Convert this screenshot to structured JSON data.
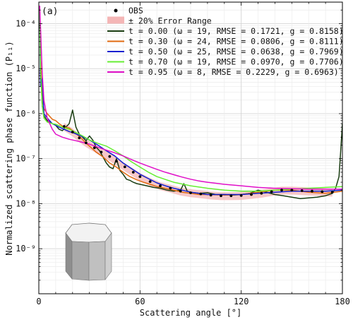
{
  "chart_data": {
    "type": "line",
    "panel_label": "(a)",
    "xlabel": "Scattering angle [°]",
    "ylabel": "Normalized scattering phase function (P₁₁)",
    "xlim": [
      0,
      180
    ],
    "ylim": [
      1e-10,
      0.0003
    ],
    "yscale": "log",
    "x_ticks": [
      0,
      60,
      120,
      180
    ],
    "y_ticks": [
      {
        "value": 1e-09,
        "label": "10⁻⁹"
      },
      {
        "value": 1e-08,
        "label": "10⁻⁸"
      },
      {
        "value": 1e-07,
        "label": "10⁻⁷"
      },
      {
        "value": 1e-06,
        "label": "10⁻⁶"
      },
      {
        "value": 1e-05,
        "label": "10⁻⁵"
      },
      {
        "value": 0.0001,
        "label": "10⁻⁴"
      }
    ],
    "grid": true,
    "legend_position": "top-right",
    "error_band": {
      "name": "± 20% Error Range",
      "color": "#f4b6b6",
      "fraction": 0.2
    },
    "observations": {
      "name": "OBS",
      "color": "#000000",
      "x": [
        15,
        20,
        24,
        28,
        33,
        37,
        42,
        46,
        51,
        56,
        60,
        66,
        72,
        78,
        84,
        90,
        96,
        102,
        108,
        114,
        120,
        126,
        132,
        138,
        144,
        150,
        156,
        162,
        168,
        174
      ],
      "y": [
        5.2e-07,
        3.9e-07,
        2.9e-07,
        2.25e-07,
        1.75e-07,
        1.4e-07,
        1.12e-07,
        8.8e-08,
        6.6e-08,
        5e-08,
        4e-08,
        3.1e-08,
        2.5e-08,
        2.2e-08,
        1.9e-08,
        1.75e-08,
        1.65e-08,
        1.55e-08,
        1.5e-08,
        1.5e-08,
        1.52e-08,
        1.6e-08,
        1.7e-08,
        1.85e-08,
        2e-08,
        2e-08,
        1.95e-08,
        1.9e-08,
        1.85e-08,
        1.8e-08
      ]
    },
    "series": [
      {
        "legend": "t = 0.00 (ω = 19, RMSE = 0.1721, g = 0.8158)",
        "color": "#1a3d12",
        "x": [
          0.5,
          1,
          2,
          3,
          5,
          8,
          10,
          12,
          14,
          16,
          18,
          20,
          22,
          24,
          26,
          28,
          30,
          32,
          34,
          36,
          38,
          40,
          42,
          44,
          46,
          48,
          50,
          52,
          54,
          56,
          58,
          60,
          64,
          68,
          72,
          76,
          80,
          84,
          86,
          88,
          90,
          95,
          100,
          105,
          110,
          115,
          120,
          125,
          130,
          135,
          140,
          145,
          150,
          155,
          160,
          165,
          170,
          174,
          176,
          178,
          179,
          180
        ],
        "y": [
          0.00025,
          1.2e-05,
          1.5e-06,
          9e-07,
          7e-07,
          6e-07,
          5.5e-07,
          4.5e-07,
          4.2e-07,
          5e-07,
          6e-07,
          1.2e-06,
          5e-07,
          3.5e-07,
          3e-07,
          2.5e-07,
          3.2e-07,
          2.6e-07,
          1.8e-07,
          1.5e-07,
          1.1e-07,
          8e-08,
          6.5e-08,
          6e-08,
          1e-07,
          5.5e-08,
          4.5e-08,
          3.5e-08,
          3.3e-08,
          3e-08,
          2.8e-08,
          2.7e-08,
          2.5e-08,
          2.3e-08,
          2.2e-08,
          2e-08,
          1.9e-08,
          2e-08,
          2.8e-08,
          1.9e-08,
          1.8e-08,
          1.7e-08,
          1.75e-08,
          1.6e-08,
          1.6e-08,
          1.55e-08,
          1.6e-08,
          1.7e-08,
          2e-08,
          1.8e-08,
          1.6e-08,
          1.5e-08,
          1.4e-08,
          1.3e-08,
          1.35e-08,
          1.4e-08,
          1.5e-08,
          1.7e-08,
          2.2e-08,
          4e-08,
          1.5e-07,
          6e-07
        ]
      },
      {
        "legend": "t = 0.30 (ω = 24, RMSE = 0.0806, g = 0.8111)",
        "color": "#e06a10",
        "x": [
          0.5,
          1,
          2,
          3,
          5,
          8,
          10,
          12,
          15,
          18,
          20,
          22,
          25,
          28,
          30,
          34,
          38,
          42,
          46,
          50,
          54,
          58,
          62,
          66,
          70,
          75,
          80,
          85,
          90,
          95,
          100,
          110,
          120,
          130,
          140,
          150,
          160,
          170,
          180
        ],
        "y": [
          0.00025,
          1.5e-05,
          2.5e-06,
          1.3e-06,
          1e-06,
          7.5e-07,
          7e-07,
          6e-07,
          5e-07,
          4.8e-07,
          4.2e-07,
          3.6e-07,
          2.9e-07,
          2.2e-07,
          1.9e-07,
          1.4e-07,
          1.1e-07,
          8e-08,
          6.5e-08,
          5e-08,
          4e-08,
          3.4e-08,
          3e-08,
          2.7e-08,
          2.4e-08,
          2.2e-08,
          2e-08,
          1.8e-08,
          1.7e-08,
          1.6e-08,
          1.6e-08,
          1.55e-08,
          1.6e-08,
          1.8e-08,
          2e-08,
          2e-08,
          1.8e-08,
          1.7e-08,
          1.9e-08
        ]
      },
      {
        "legend": "t = 0.50 (ω = 25, RMSE = 0.0638, g = 0.7969)",
        "color": "#1020d0",
        "x": [
          0.5,
          1,
          2,
          3,
          5,
          8,
          10,
          12,
          15,
          18,
          20,
          25,
          30,
          35,
          40,
          45,
          50,
          55,
          60,
          65,
          70,
          75,
          80,
          85,
          90,
          95,
          100,
          105,
          110,
          120,
          130,
          140,
          150,
          160,
          170,
          180
        ],
        "y": [
          0.00025,
          4e-06,
          6e-06,
          1e-06,
          8e-07,
          6e-07,
          5.5e-07,
          5e-07,
          4.5e-07,
          4e-07,
          3.8e-07,
          3.2e-07,
          2.6e-07,
          2e-07,
          1.5e-07,
          1.15e-07,
          8e-08,
          6e-08,
          4.5e-08,
          3.6e-08,
          2.9e-08,
          2.5e-08,
          2.2e-08,
          2e-08,
          1.8e-08,
          1.7e-08,
          1.6e-08,
          1.6e-08,
          1.6e-08,
          1.6e-08,
          1.7e-08,
          1.8e-08,
          1.9e-08,
          1.9e-08,
          1.9e-08,
          2e-08
        ]
      },
      {
        "legend": "t = 0.70 (ω = 19, RMSE = 0.0970, g = 0.7706)",
        "color": "#66ee33",
        "x": [
          0.5,
          1,
          2,
          3,
          5,
          8,
          10,
          14,
          18,
          22,
          26,
          30,
          35,
          40,
          45,
          50,
          55,
          60,
          65,
          70,
          80,
          90,
          100,
          110,
          120,
          130,
          140,
          150,
          160,
          170,
          180
        ],
        "y": [
          0.00025,
          1e-05,
          1.5e-06,
          8e-07,
          6.5e-07,
          6e-07,
          5.8e-07,
          5e-07,
          4.5e-07,
          3.8e-07,
          3.2e-07,
          2.6e-07,
          2.2e-07,
          1.9e-07,
          1.5e-07,
          1.15e-07,
          8.5e-08,
          6.5e-08,
          5e-08,
          4e-08,
          3e-08,
          2.5e-08,
          2.2e-08,
          2e-08,
          1.9e-08,
          1.9e-08,
          2e-08,
          2.1e-08,
          2.2e-08,
          2.3e-08,
          2.4e-08
        ]
      },
      {
        "legend": "t = 0.95 (ω = 8, RMSE = 0.2229, g = 0.6963)",
        "color": "#e010c8",
        "x": [
          0.5,
          1,
          2,
          3,
          5,
          8,
          10,
          14,
          18,
          22,
          26,
          30,
          35,
          40,
          45,
          50,
          55,
          60,
          65,
          70,
          75,
          80,
          85,
          90,
          95,
          100,
          110,
          120,
          130,
          140,
          150,
          160,
          170,
          180
        ],
        "y": [
          0.00025,
          8e-05,
          8e-06,
          2e-06,
          8e-07,
          4.5e-07,
          3.5e-07,
          3e-07,
          2.7e-07,
          2.5e-07,
          2.3e-07,
          2.1e-07,
          1.8e-07,
          1.55e-07,
          1.35e-07,
          1.15e-07,
          9.5e-08,
          8e-08,
          6.8e-08,
          5.8e-08,
          5e-08,
          4.4e-08,
          3.9e-08,
          3.5e-08,
          3.2e-08,
          3e-08,
          2.7e-08,
          2.5e-08,
          2.3e-08,
          2.2e-08,
          2.15e-08,
          2.1e-08,
          2.1e-08,
          2.1e-08
        ]
      }
    ]
  }
}
